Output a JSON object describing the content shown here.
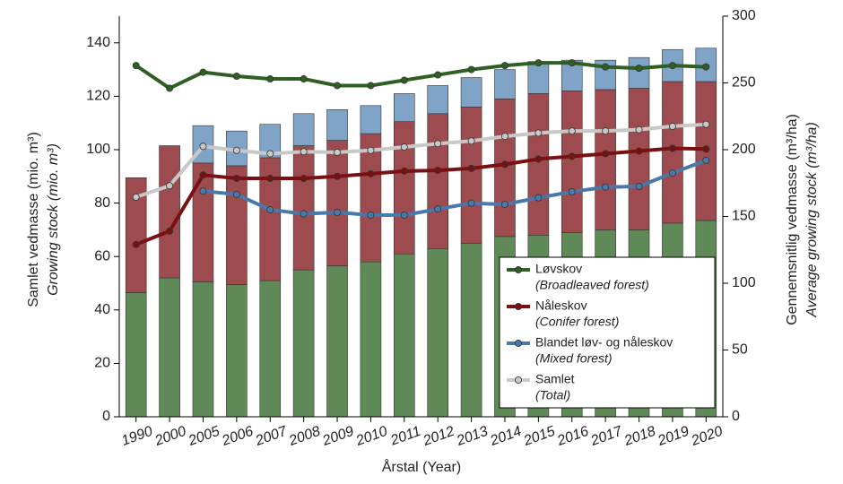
{
  "chart_data": {
    "type": "bar-line",
    "xlabel": "Årstal (Year)",
    "ylabel": "Samlet vedmasse (mio. m³)",
    "ylabel_en": "Growing stock (mio. m³)",
    "y2label": "Gennemsnitlig vedmasse (m³/ha)",
    "y2label_en": "Average growing stock (m³/ha)",
    "categories": [
      "1990",
      "2000",
      "2005",
      "2006",
      "2007",
      "2008",
      "2009",
      "2010",
      "2011",
      "2012",
      "2013",
      "2014",
      "2015",
      "2016",
      "2017",
      "2018",
      "2019",
      "2020"
    ],
    "ylim": [
      0,
      150
    ],
    "yticks": [
      0,
      20,
      40,
      60,
      80,
      100,
      120,
      140
    ],
    "y2lim": [
      0,
      300
    ],
    "y2ticks": [
      0,
      50,
      100,
      150,
      200,
      250,
      300
    ],
    "legend": "lower right",
    "series": [
      {
        "name": "Løvskov",
        "name_en": "(Broadleaved forest)",
        "color": "#2f5f25",
        "bar_color": "#5f8a58",
        "stock": [
          46.5,
          52,
          50.5,
          49.5,
          51,
          55,
          56.5,
          58,
          61,
          63,
          65,
          67.5,
          68,
          69,
          70,
          70,
          72.5,
          73.5
        ],
        "avg": [
          263,
          246,
          258,
          255,
          253,
          253,
          248,
          248,
          252,
          256,
          260,
          263,
          265,
          265,
          262,
          261,
          263,
          262
        ]
      },
      {
        "name": "Nåleskov",
        "name_en": "(Conifer forest)",
        "color": "#7a1012",
        "bar_color": "#9d4b4f",
        "stock": [
          43,
          49.5,
          44.5,
          44.5,
          46,
          46.5,
          47,
          48,
          49.5,
          50.5,
          51,
          51.5,
          53,
          53,
          52.5,
          53,
          53,
          52
        ],
        "avg": [
          129,
          139,
          181,
          178.5,
          178.5,
          178.5,
          180,
          182,
          184,
          184.5,
          186,
          189,
          193,
          195,
          197,
          199,
          201,
          200.5
        ]
      },
      {
        "name": "Blandet løv- og nåleskov",
        "name_en": "(Mixed forest)",
        "color": "#4a78a8",
        "bar_color": "#80a3c8",
        "stock": [
          null,
          null,
          14,
          13,
          12.5,
          12,
          11.5,
          10.5,
          10.5,
          10.5,
          11,
          11,
          12,
          11.5,
          11,
          11.5,
          12,
          12.5
        ],
        "avg": [
          null,
          null,
          169,
          166.5,
          155,
          152,
          153,
          151,
          151,
          155.5,
          160,
          159,
          164,
          168.5,
          172,
          172.5,
          182.5,
          192
        ]
      },
      {
        "name": "Samlet",
        "name_en": "(Total)",
        "color": "#c8c8c8",
        "avg": [
          164.5,
          173,
          202.5,
          199.5,
          197,
          198.5,
          198,
          199.5,
          202,
          204.5,
          206.5,
          210,
          212.5,
          214,
          214,
          215,
          217.5,
          219
        ]
      }
    ]
  }
}
